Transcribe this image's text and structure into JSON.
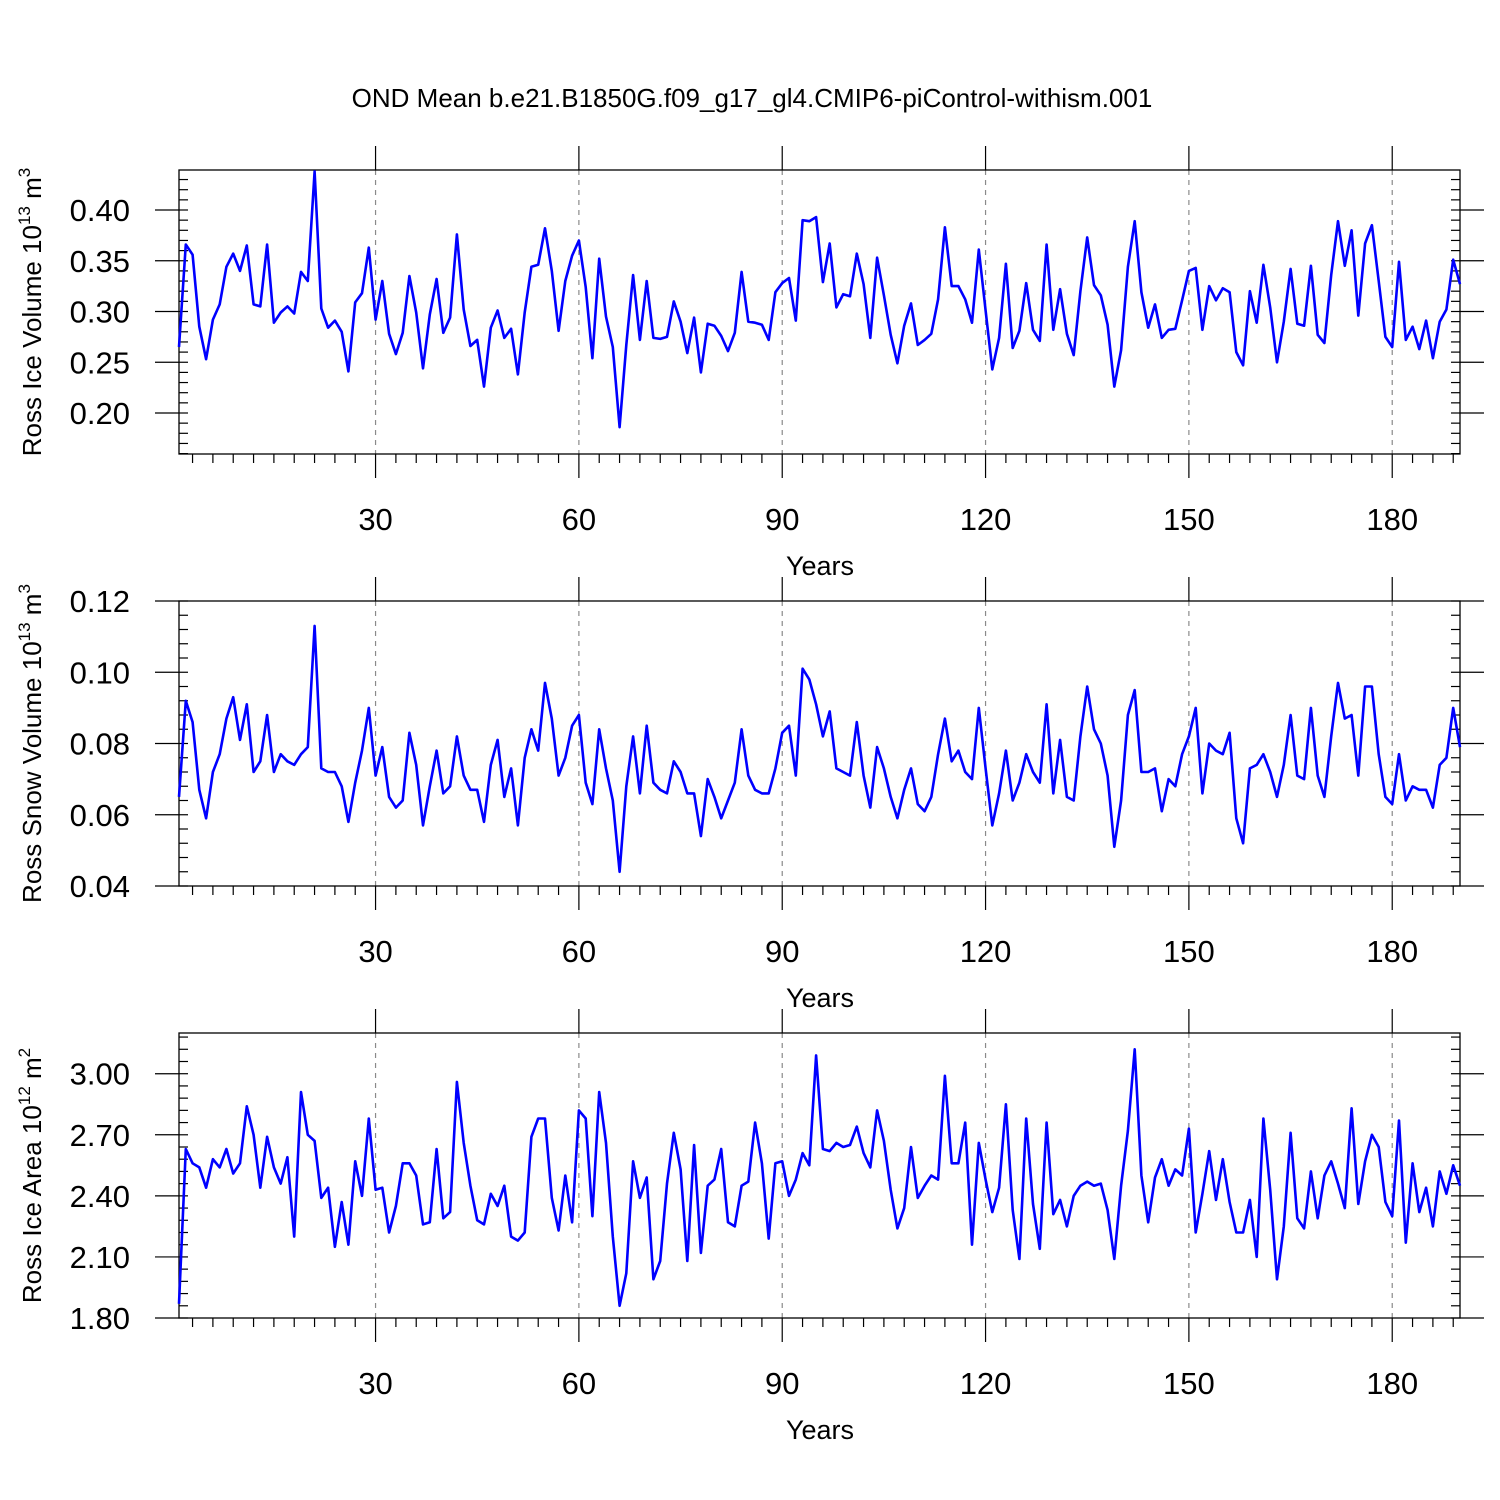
{
  "colors": {
    "series": "#0000ff",
    "grid": "#8a8a8a",
    "axis": "#000000",
    "background": "#ffffff"
  },
  "chart_data": [
    {
      "type": "line",
      "title": "OND Mean b.e21.B1850G.f09_g17_gl4.CMIP6-piControl-withism.001",
      "xlabel": "Years",
      "ylabel": {
        "main": "Ross Ice Volume 10",
        "sup1": "13",
        "mid": " m",
        "sup2": "3"
      },
      "xlim": [
        1,
        190
      ],
      "ylim": [
        0.16,
        0.44
      ],
      "xticks": [
        30,
        60,
        90,
        120,
        150,
        180
      ],
      "xtick_labels": [
        "30",
        "60",
        "90",
        "120",
        "150",
        "180"
      ],
      "yticks": [
        0.2,
        0.25,
        0.3,
        0.35,
        0.4
      ],
      "ytick_labels": [
        "0.20",
        "0.25",
        "0.30",
        "0.35",
        "0.40"
      ],
      "y_minor_step": 0.01,
      "grid": "vertical dashed at major x ticks",
      "series": [
        {
          "name": "Ross Ice Volume",
          "values": [
            0.265,
            0.366,
            0.356,
            0.285,
            0.253,
            0.292,
            0.307,
            0.344,
            0.357,
            0.34,
            0.365,
            0.307,
            0.305,
            0.366,
            0.289,
            0.299,
            0.305,
            0.298,
            0.339,
            0.33,
            0.438,
            0.303,
            0.284,
            0.291,
            0.28,
            0.241,
            0.309,
            0.318,
            0.363,
            0.292,
            0.33,
            0.278,
            0.258,
            0.279,
            0.335,
            0.299,
            0.244,
            0.297,
            0.332,
            0.279,
            0.294,
            0.376,
            0.302,
            0.266,
            0.272,
            0.226,
            0.284,
            0.301,
            0.274,
            0.283,
            0.238,
            0.299,
            0.344,
            0.346,
            0.382,
            0.34,
            0.281,
            0.33,
            0.355,
            0.37,
            0.324,
            0.254,
            0.352,
            0.295,
            0.265,
            0.186,
            0.267,
            0.336,
            0.272,
            0.33,
            0.274,
            0.273,
            0.275,
            0.31,
            0.29,
            0.259,
            0.294,
            0.24,
            0.288,
            0.286,
            0.276,
            0.261,
            0.279,
            0.339,
            0.29,
            0.289,
            0.287,
            0.272,
            0.319,
            0.328,
            0.333,
            0.291,
            0.39,
            0.389,
            0.393,
            0.329,
            0.367,
            0.304,
            0.317,
            0.315,
            0.357,
            0.327,
            0.274,
            0.353,
            0.316,
            0.277,
            0.249,
            0.286,
            0.308,
            0.267,
            0.272,
            0.278,
            0.312,
            0.383,
            0.325,
            0.325,
            0.312,
            0.289,
            0.361,
            0.301,
            0.243,
            0.274,
            0.347,
            0.264,
            0.281,
            0.328,
            0.282,
            0.271,
            0.366,
            0.282,
            0.322,
            0.278,
            0.257,
            0.32,
            0.373,
            0.326,
            0.316,
            0.287,
            0.226,
            0.262,
            0.344,
            0.389,
            0.319,
            0.284,
            0.307,
            0.274,
            0.282,
            0.283,
            0.311,
            0.34,
            0.343,
            0.282,
            0.325,
            0.311,
            0.323,
            0.319,
            0.26,
            0.247,
            0.32,
            0.289,
            0.346,
            0.304,
            0.25,
            0.29,
            0.342,
            0.288,
            0.286,
            0.345,
            0.277,
            0.269,
            0.336,
            0.389,
            0.345,
            0.38,
            0.296,
            0.367,
            0.385,
            0.33,
            0.275,
            0.265,
            0.349,
            0.272,
            0.285,
            0.263,
            0.291,
            0.254,
            0.29,
            0.302,
            0.351,
            0.327
          ]
        }
      ]
    },
    {
      "type": "line",
      "xlabel": "Years",
      "ylabel": {
        "main": "Ross Snow Volume 10",
        "sup1": "13",
        "mid": " m",
        "sup2": "3"
      },
      "xlim": [
        1,
        190
      ],
      "ylim": [
        0.04,
        0.12
      ],
      "xticks": [
        30,
        60,
        90,
        120,
        150,
        180
      ],
      "xtick_labels": [
        "30",
        "60",
        "90",
        "120",
        "150",
        "180"
      ],
      "yticks": [
        0.04,
        0.06,
        0.08,
        0.1,
        0.12
      ],
      "ytick_labels": [
        "0.04",
        "0.06",
        "0.08",
        "0.10",
        "0.12"
      ],
      "y_minor_step": 0.004,
      "grid": "vertical dashed at major x ticks",
      "series": [
        {
          "name": "Ross Snow Volume",
          "values": [
            0.065,
            0.092,
            0.086,
            0.067,
            0.059,
            0.072,
            0.077,
            0.087,
            0.093,
            0.081,
            0.091,
            0.072,
            0.075,
            0.088,
            0.072,
            0.077,
            0.075,
            0.074,
            0.077,
            0.079,
            0.113,
            0.073,
            0.072,
            0.072,
            0.068,
            0.058,
            0.069,
            0.078,
            0.09,
            0.071,
            0.079,
            0.065,
            0.062,
            0.064,
            0.083,
            0.074,
            0.057,
            0.068,
            0.078,
            0.066,
            0.068,
            0.082,
            0.071,
            0.067,
            0.067,
            0.058,
            0.074,
            0.081,
            0.065,
            0.073,
            0.057,
            0.076,
            0.084,
            0.078,
            0.097,
            0.087,
            0.071,
            0.076,
            0.085,
            0.088,
            0.069,
            0.063,
            0.084,
            0.073,
            0.064,
            0.044,
            0.068,
            0.082,
            0.066,
            0.085,
            0.069,
            0.067,
            0.066,
            0.075,
            0.072,
            0.066,
            0.066,
            0.054,
            0.07,
            0.065,
            0.059,
            0.064,
            0.069,
            0.084,
            0.071,
            0.067,
            0.066,
            0.066,
            0.073,
            0.083,
            0.085,
            0.071,
            0.101,
            0.098,
            0.091,
            0.082,
            0.089,
            0.073,
            0.072,
            0.071,
            0.086,
            0.071,
            0.062,
            0.079,
            0.073,
            0.065,
            0.059,
            0.067,
            0.073,
            0.063,
            0.061,
            0.065,
            0.077,
            0.087,
            0.075,
            0.078,
            0.072,
            0.07,
            0.09,
            0.073,
            0.057,
            0.066,
            0.078,
            0.064,
            0.069,
            0.077,
            0.072,
            0.069,
            0.091,
            0.066,
            0.081,
            0.065,
            0.064,
            0.082,
            0.096,
            0.084,
            0.08,
            0.071,
            0.051,
            0.064,
            0.088,
            0.095,
            0.072,
            0.072,
            0.073,
            0.061,
            0.07,
            0.068,
            0.077,
            0.082,
            0.09,
            0.066,
            0.08,
            0.078,
            0.077,
            0.083,
            0.059,
            0.052,
            0.073,
            0.074,
            0.077,
            0.072,
            0.065,
            0.074,
            0.088,
            0.071,
            0.07,
            0.09,
            0.071,
            0.065,
            0.082,
            0.097,
            0.087,
            0.088,
            0.071,
            0.096,
            0.096,
            0.077,
            0.065,
            0.063,
            0.077,
            0.064,
            0.068,
            0.067,
            0.067,
            0.062,
            0.074,
            0.076,
            0.09,
            0.079
          ]
        }
      ]
    },
    {
      "type": "line",
      "xlabel": "Years",
      "ylabel": {
        "main": "Ross Ice Area 10",
        "sup1": "12",
        "mid": " m",
        "sup2": "2"
      },
      "xlim": [
        1,
        190
      ],
      "ylim": [
        1.8,
        3.2
      ],
      "xticks": [
        30,
        60,
        90,
        120,
        150,
        180
      ],
      "xtick_labels": [
        "30",
        "60",
        "90",
        "120",
        "150",
        "180"
      ],
      "yticks": [
        1.8,
        2.1,
        2.4,
        2.7,
        3.0
      ],
      "ytick_labels": [
        "1.80",
        "2.10",
        "2.40",
        "2.70",
        "3.00"
      ],
      "y_minor_step": 0.06,
      "grid": "vertical dashed at major x ticks",
      "series": [
        {
          "name": "Ross Ice Area",
          "values": [
            1.87,
            2.63,
            2.56,
            2.54,
            2.44,
            2.58,
            2.54,
            2.63,
            2.51,
            2.56,
            2.84,
            2.7,
            2.44,
            2.69,
            2.54,
            2.46,
            2.59,
            2.2,
            2.91,
            2.7,
            2.67,
            2.39,
            2.44,
            2.15,
            2.37,
            2.16,
            2.57,
            2.4,
            2.78,
            2.43,
            2.44,
            2.22,
            2.35,
            2.56,
            2.56,
            2.5,
            2.26,
            2.27,
            2.63,
            2.29,
            2.32,
            2.96,
            2.66,
            2.45,
            2.28,
            2.26,
            2.41,
            2.35,
            2.45,
            2.2,
            2.18,
            2.22,
            2.69,
            2.78,
            2.78,
            2.39,
            2.23,
            2.5,
            2.27,
            2.82,
            2.78,
            2.3,
            2.91,
            2.66,
            2.2,
            1.86,
            2.02,
            2.57,
            2.39,
            2.49,
            1.99,
            2.08,
            2.46,
            2.71,
            2.53,
            2.08,
            2.65,
            2.12,
            2.45,
            2.48,
            2.63,
            2.27,
            2.25,
            2.45,
            2.47,
            2.76,
            2.56,
            2.19,
            2.56,
            2.57,
            2.4,
            2.48,
            2.61,
            2.55,
            3.09,
            2.63,
            2.62,
            2.66,
            2.64,
            2.65,
            2.74,
            2.61,
            2.54,
            2.82,
            2.67,
            2.43,
            2.24,
            2.34,
            2.64,
            2.39,
            2.45,
            2.5,
            2.48,
            2.99,
            2.56,
            2.56,
            2.76,
            2.16,
            2.66,
            2.48,
            2.32,
            2.44,
            2.85,
            2.33,
            2.09,
            2.78,
            2.36,
            2.14,
            2.76,
            2.31,
            2.38,
            2.25,
            2.4,
            2.45,
            2.47,
            2.45,
            2.46,
            2.33,
            2.09,
            2.45,
            2.72,
            3.12,
            2.5,
            2.27,
            2.49,
            2.58,
            2.45,
            2.53,
            2.5,
            2.73,
            2.22,
            2.41,
            2.62,
            2.38,
            2.58,
            2.37,
            2.22,
            2.22,
            2.38,
            2.1,
            2.78,
            2.43,
            1.99,
            2.25,
            2.71,
            2.29,
            2.24,
            2.52,
            2.29,
            2.5,
            2.57,
            2.46,
            2.34,
            2.83,
            2.36,
            2.57,
            2.7,
            2.64,
            2.37,
            2.3,
            2.77,
            2.17,
            2.56,
            2.32,
            2.44,
            2.25,
            2.52,
            2.41,
            2.55,
            2.45
          ]
        }
      ]
    }
  ]
}
